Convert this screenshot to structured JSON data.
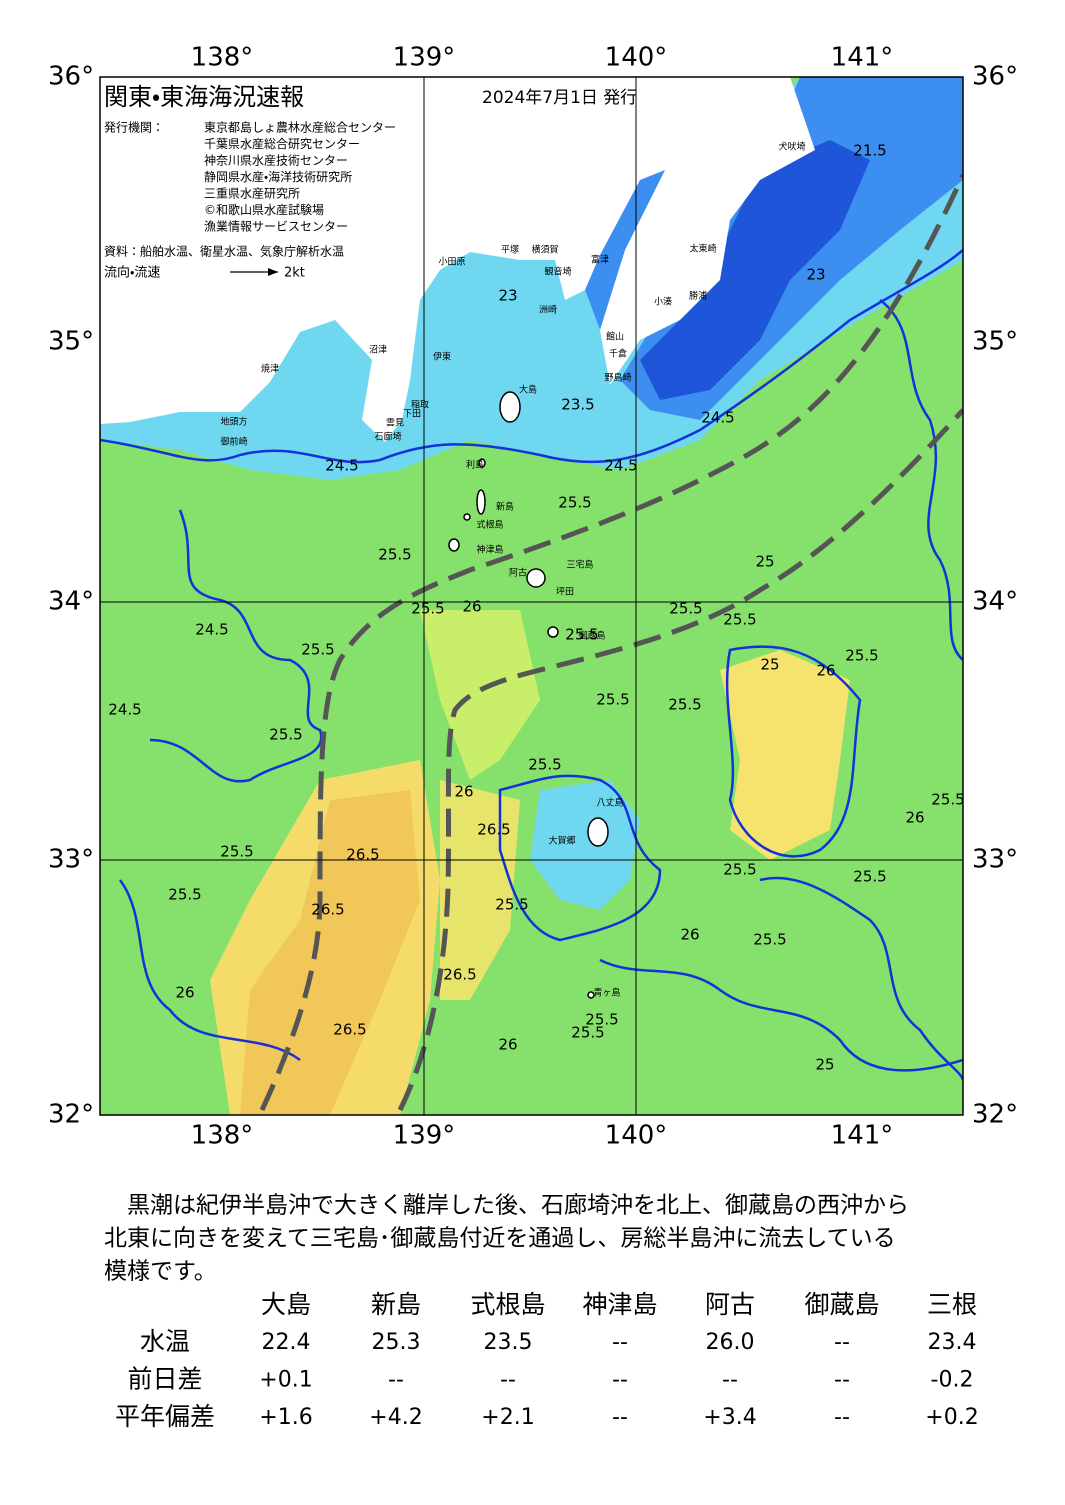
{
  "map": {
    "title": "関東・東海海況速報",
    "issue_date": "2024年7月1日 発行",
    "issuers_label": "発行機関：",
    "issuers": [
      "東京都島しょ農林水産総合センター",
      "千葉県水産総合研究センター",
      "神奈川県水産技術センター",
      "静岡県水産・海洋技術研究所",
      "三重県水産研究所",
      "©和歌山県水産試験場",
      "漁業情報サービスセンター"
    ],
    "source": "資料：船舶水温、衛星水温、気象庁解析水温",
    "current_label": "流向・流速",
    "current_unit": "2kt",
    "lon_labels": [
      "138°",
      "139°",
      "140°",
      "141°"
    ],
    "lat_labels": [
      "36°",
      "35°",
      "34°",
      "33°",
      "32°"
    ],
    "place_names": [
      "大島",
      "利島",
      "新島",
      "式根島",
      "神津島",
      "三宅島",
      "坪田",
      "阿古",
      "御蔵島",
      "八丈島",
      "大賀郷",
      "青ヶ島",
      "小田原",
      "平塚",
      "横須賀",
      "富津",
      "観音埼",
      "洲崎",
      "館山",
      "千倉",
      "野島崎",
      "小湊",
      "勝浦",
      "太東崎",
      "犬吠埼",
      "伊東",
      "稲取",
      "下田",
      "石廊埼",
      "雲見",
      "沼津",
      "焼津",
      "地頭方",
      "御前崎"
    ],
    "contour_labels": [
      "21.5",
      "23",
      "23",
      "23.5",
      "24.5",
      "24.5",
      "24.5",
      "25.5",
      "25.5",
      "25.5",
      "26",
      "25.5",
      "24.5",
      "25.5",
      "25.5",
      "26",
      "25.5",
      "25.5",
      "25.5",
      "24.5",
      "25.5",
      "26",
      "25.5",
      "26.5",
      "26.5",
      "25.5",
      "25.5",
      "26.5",
      "25.5",
      "26",
      "25.5",
      "25.5",
      "25.5",
      "26",
      "26.5",
      "25.5",
      "25.5",
      "26.5",
      "26",
      "25",
      "25",
      "25.5",
      "26",
      "25.5",
      "25"
    ]
  },
  "summary": [
    "　黒潮は紀伊半島沖で大きく離岸した後、石廊埼沖を北上、御蔵島の西沖から",
    "北東に向きを変えて三宅島･御蔵島付近を通過し、房総半島沖に流去している",
    "模様です。"
  ],
  "table": {
    "header": [
      "大島",
      "新島",
      "式根島",
      "神津島",
      "阿古",
      "御蔵島",
      "三根"
    ],
    "rows": [
      [
        "水温",
        "22.4",
        "25.3",
        "23.5",
        "--",
        "26.0",
        "--",
        "23.4"
      ],
      [
        "前日差",
        "+0.1",
        "--",
        "--",
        "--",
        "--",
        "--",
        "-0.2"
      ],
      [
        "平年偏差",
        "+1.6",
        "+4.2",
        "+2.1",
        "--",
        "+3.4",
        "--",
        "+0.2"
      ]
    ]
  }
}
